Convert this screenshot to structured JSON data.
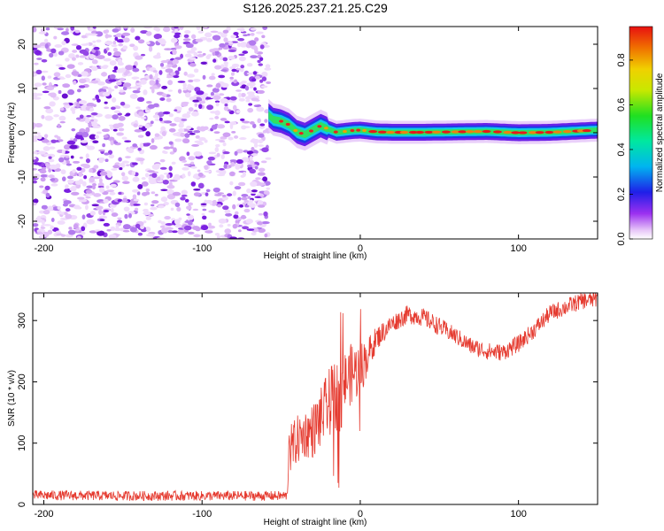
{
  "title": "S126.2025.237.21.25.C29",
  "colors": {
    "snr_line": "#e53a2f",
    "noise_purple": "#8b2be0",
    "background": "#ffffff"
  },
  "chart_data": [
    {
      "type": "heatmap",
      "name": "spectrogram",
      "xlabel": "Height of straight line (km)",
      "ylabel": "Frequency (Hz)",
      "xlim": [
        -207,
        150
      ],
      "ylim": [
        -24,
        24
      ],
      "xticks": [
        -200,
        -100,
        0,
        100
      ],
      "yticks": [
        -20,
        -10,
        0,
        10,
        20
      ],
      "noise_region_x": [
        -207,
        -58
      ],
      "ridge": {
        "x": [
          -58,
          -55,
          -50,
          -45,
          -40,
          -35,
          -30,
          -25,
          -20,
          -15,
          -10,
          -5,
          0,
          10,
          20,
          40,
          60,
          80,
          100,
          120,
          150
        ],
        "freq": [
          4.0,
          3.0,
          2.6,
          1.8,
          0.2,
          -0.4,
          0.6,
          1.6,
          0.8,
          0.1,
          0.3,
          0.5,
          0.6,
          0.2,
          0.1,
          0.1,
          0.2,
          0.3,
          0.0,
          0.1,
          0.6
        ]
      },
      "colorbar": {
        "label": "Normalized spectral amplitude",
        "range": [
          0.0,
          0.95
        ],
        "ticks": [
          0.0,
          0.2,
          0.4,
          0.6,
          0.8
        ]
      }
    },
    {
      "type": "line",
      "name": "snr",
      "xlabel": "Height of straight line (km)",
      "ylabel": "SNR (10 * v/v)",
      "xlim": [
        -207,
        150
      ],
      "ylim": [
        0,
        345
      ],
      "xticks": [
        -200,
        -100,
        0,
        100
      ],
      "yticks": [
        0,
        100,
        200,
        300
      ],
      "series": [
        {
          "name": "SNR",
          "x": [
            -207,
            -150,
            -100,
            -60,
            -46,
            -45,
            -44,
            -40,
            -35,
            -30,
            -25,
            -20,
            -15,
            -12,
            -10,
            -5,
            0,
            5,
            10,
            20,
            30,
            40,
            50,
            60,
            70,
            80,
            90,
            100,
            110,
            120,
            130,
            140,
            150
          ],
          "values": [
            15,
            14,
            14,
            14,
            14,
            120,
            90,
            105,
            115,
            120,
            140,
            165,
            180,
            160,
            200,
            215,
            220,
            245,
            270,
            295,
            310,
            305,
            290,
            275,
            258,
            250,
            248,
            262,
            285,
            312,
            322,
            332,
            335
          ],
          "noise_amp": [
            8,
            8,
            8,
            8,
            8,
            40,
            40,
            40,
            40,
            45,
            50,
            55,
            60,
            70,
            50,
            50,
            45,
            30,
            20,
            15,
            15,
            15,
            15,
            14,
            14,
            14,
            14,
            14,
            14,
            14,
            14,
            14,
            14
          ]
        }
      ]
    }
  ]
}
